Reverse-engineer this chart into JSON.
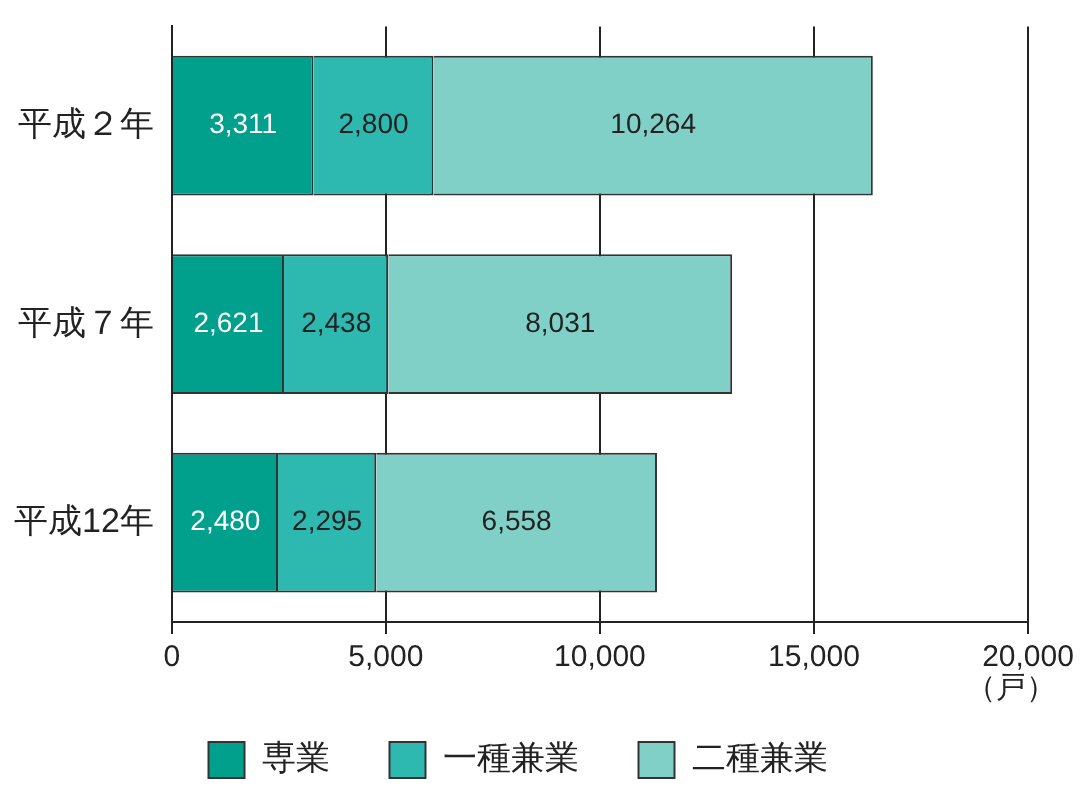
{
  "chart_data": {
    "type": "bar",
    "orientation": "horizontal",
    "stacked": true,
    "categories": [
      "平成２年",
      "平成７年",
      "平成12年"
    ],
    "series": [
      {
        "name": "専業",
        "color": "#00a08c",
        "values": [
          3311,
          2621,
          2480
        ],
        "value_labels": [
          "3,311",
          "2,621",
          "2,480"
        ]
      },
      {
        "name": "一種兼業",
        "color": "#2db8b0",
        "values": [
          2800,
          2438,
          2295
        ],
        "value_labels": [
          "2,800",
          "2,438",
          "2,295"
        ]
      },
      {
        "name": "二種兼業",
        "color": "#80d0c8",
        "values": [
          10264,
          8031,
          6558
        ],
        "value_labels": [
          "10,264",
          "8,031",
          "6,558"
        ]
      }
    ],
    "xlim": [
      0,
      20000
    ],
    "xticks": [
      0,
      {
        "value": 5000,
        "label": "5,000"
      },
      {
        "value": 10000,
        "label": "10,000"
      },
      {
        "value": 15000,
        "label": "15,000"
      },
      {
        "value": 20000,
        "label": "20,000"
      }
    ],
    "xlabel": "（戸）",
    "grid": "x",
    "legend": "bottom"
  }
}
